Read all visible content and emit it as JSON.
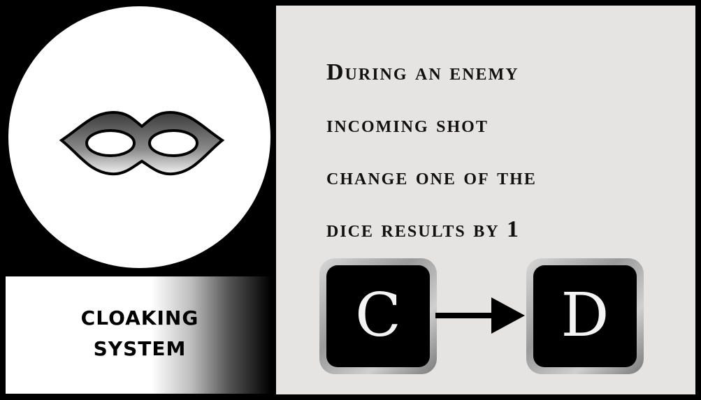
{
  "card": {
    "name": "CLOAKING SYSTEM",
    "icon": "domino-mask-icon",
    "ability_lines": [
      "During an enemy",
      "incoming shot",
      "change one of the",
      "dice results by 1"
    ],
    "dice_example": {
      "from": "C",
      "to": "D"
    }
  },
  "colors": {
    "frame": "#000000",
    "text_panel": "#e6e4e2",
    "icon_disc": "#ffffff",
    "die_face": "#000000"
  }
}
